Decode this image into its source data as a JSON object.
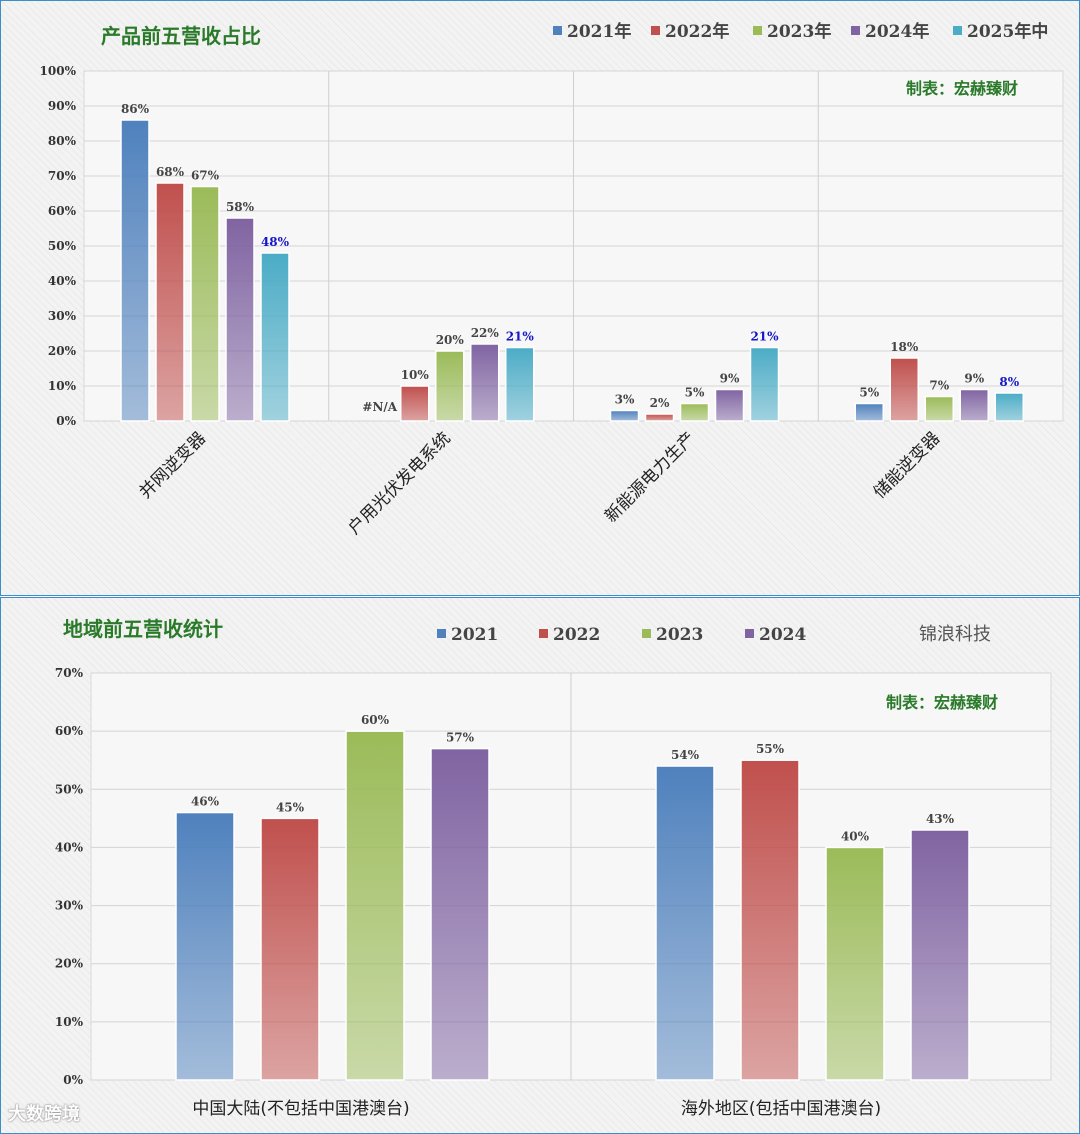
{
  "colors": {
    "2021": "#4f81bd",
    "2022": "#c0504d",
    "2023": "#9bbb59",
    "2024": "#8064a2",
    "2025": "#4bacc6",
    "title": "#2a7a2a",
    "highlight": "#1414c8"
  },
  "watermark": "大数跨境",
  "chart_data": [
    {
      "type": "bar",
      "title": "产品前五营收占比",
      "credit": "制表：宏赫臻财",
      "legend_position": "top-right",
      "grid": true,
      "ylim": [
        0,
        100
      ],
      "yticks": [
        "0%",
        "10%",
        "20%",
        "30%",
        "40%",
        "50%",
        "60%",
        "70%",
        "80%",
        "90%",
        "100%"
      ],
      "categories": [
        "并网逆变器",
        "户用光伏发电系统",
        "新能源电力生产",
        "储能逆变器"
      ],
      "series": [
        {
          "name": "2021年",
          "color_key": "2021",
          "values": [
            86,
            null,
            3,
            5
          ],
          "labels": [
            "86%",
            "#N/A",
            "3%",
            "5%"
          ]
        },
        {
          "name": "2022年",
          "color_key": "2022",
          "values": [
            68,
            10,
            2,
            18
          ],
          "labels": [
            "68%",
            "10%",
            "2%",
            "18%"
          ]
        },
        {
          "name": "2023年",
          "color_key": "2023",
          "values": [
            67,
            20,
            5,
            7
          ],
          "labels": [
            "67%",
            "20%",
            "5%",
            "7%"
          ]
        },
        {
          "name": "2024年",
          "color_key": "2024",
          "values": [
            58,
            22,
            9,
            9
          ],
          "labels": [
            "58%",
            "22%",
            "9%",
            "9%"
          ]
        },
        {
          "name": "2025年中",
          "color_key": "2025",
          "values": [
            48,
            21,
            21,
            8
          ],
          "labels": [
            "48%",
            "21%",
            "21%",
            "8%"
          ],
          "highlight": true
        }
      ]
    },
    {
      "type": "bar",
      "title": "地域前五营收统计",
      "credit": "制表：宏赫臻财",
      "brand": "锦浪科技",
      "legend_position": "top",
      "grid": true,
      "ylim": [
        0,
        70
      ],
      "yticks": [
        "0%",
        "10%",
        "20%",
        "30%",
        "40%",
        "50%",
        "60%",
        "70%"
      ],
      "categories": [
        "中国大陆(不包括中国港澳台)",
        "海外地区(包括中国港澳台)"
      ],
      "series": [
        {
          "name": "2021",
          "color_key": "2021",
          "values": [
            46,
            54
          ],
          "labels": [
            "46%",
            "54%"
          ]
        },
        {
          "name": "2022",
          "color_key": "2022",
          "values": [
            45,
            55
          ],
          "labels": [
            "45%",
            "55%"
          ]
        },
        {
          "name": "2023",
          "color_key": "2023",
          "values": [
            60,
            40
          ],
          "labels": [
            "60%",
            "40%"
          ]
        },
        {
          "name": "2024",
          "color_key": "2024",
          "values": [
            57,
            43
          ],
          "labels": [
            "57%",
            "43%"
          ]
        }
      ]
    }
  ]
}
